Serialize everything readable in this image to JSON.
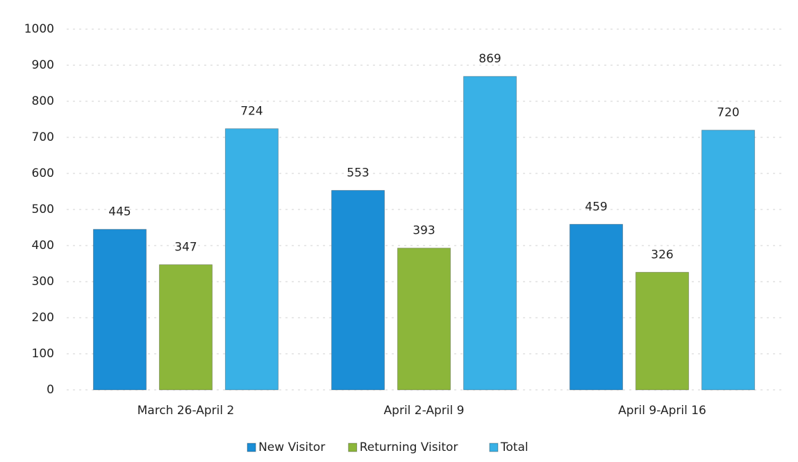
{
  "chart_data": {
    "type": "bar",
    "categories": [
      "March 26-April 2",
      "April 2-April 9",
      "April 9-April 16"
    ],
    "series": [
      {
        "name": "New Visitor",
        "color": "#1b8ed6",
        "values": [
          445,
          553,
          459
        ]
      },
      {
        "name": "Returning Visitor",
        "color": "#8cb63a",
        "values": [
          347,
          393,
          326
        ]
      },
      {
        "name": "Total",
        "color": "#39b1e6",
        "values": [
          724,
          869,
          720
        ]
      }
    ],
    "ylim": [
      0,
      1000
    ],
    "yticks": [
      0,
      100,
      200,
      300,
      400,
      500,
      600,
      700,
      800,
      900,
      1000
    ],
    "grid": true,
    "legend": "bottom"
  }
}
